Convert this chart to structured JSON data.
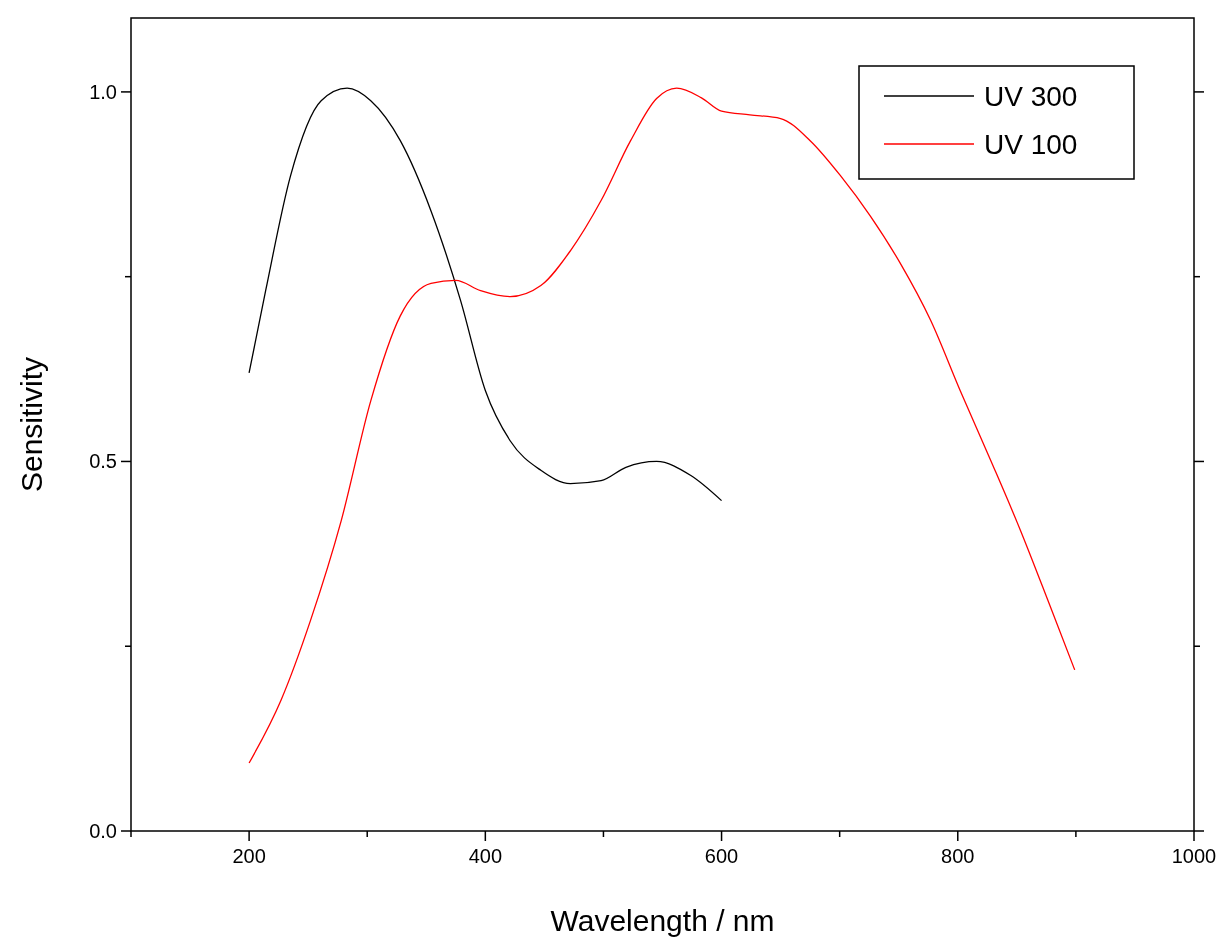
{
  "chart_data": {
    "type": "line",
    "xlabel": "Wavelength / nm",
    "ylabel": "Sensitivity",
    "xlim": [
      100,
      1000
    ],
    "ylim": [
      0,
      1.1
    ],
    "xticks": [
      {
        "value": 100,
        "label": null
      },
      200,
      {
        "value": 300,
        "label": null
      },
      400,
      {
        "value": 500,
        "label": null
      },
      600,
      {
        "value": 700,
        "label": null
      },
      800,
      {
        "value": 900,
        "label": null
      },
      1000
    ],
    "yticks": [
      {
        "value": 0,
        "label": "0.0"
      },
      {
        "value": 0.25,
        "label": null
      },
      {
        "value": 0.5,
        "label": "0.5"
      },
      {
        "value": 0.75,
        "label": null
      },
      {
        "value": 1,
        "label": "1.0"
      }
    ],
    "legend": "top right",
    "grid": false,
    "line_style": "solid",
    "marker": "none",
    "series": [
      {
        "name": "UV 300",
        "color": "#000000",
        "x": [
          200,
          214,
          235,
          261,
          283,
          303,
          328,
          354,
          379,
          400,
          421,
          447,
          472,
          498,
          519,
          545,
          574,
          600
        ],
        "values": [
          0.62,
          0.731,
          0.886,
          0.988,
          1.005,
          0.988,
          0.934,
          0.839,
          0.718,
          0.596,
          0.528,
          0.488,
          0.47,
          0.474,
          0.492,
          0.5,
          0.481,
          0.447
        ]
      },
      {
        "name": "UV 100",
        "color": "#ff0000",
        "x": [
          200,
          227,
          252,
          278,
          303,
          328,
          354,
          375,
          396,
          421,
          447,
          472,
          498,
          523,
          545,
          562,
          583,
          600,
          624,
          650,
          675,
          701,
          726,
          751,
          777,
          802,
          828,
          853,
          878,
          899
        ],
        "values": [
          0.092,
          0.177,
          0.285,
          0.42,
          0.582,
          0.697,
          0.741,
          0.745,
          0.731,
          0.723,
          0.738,
          0.785,
          0.853,
          0.934,
          0.991,
          1.005,
          0.992,
          0.974,
          0.969,
          0.964,
          0.934,
          0.886,
          0.832,
          0.769,
          0.691,
          0.596,
          0.501,
          0.407,
          0.305,
          0.218
        ]
      }
    ]
  }
}
